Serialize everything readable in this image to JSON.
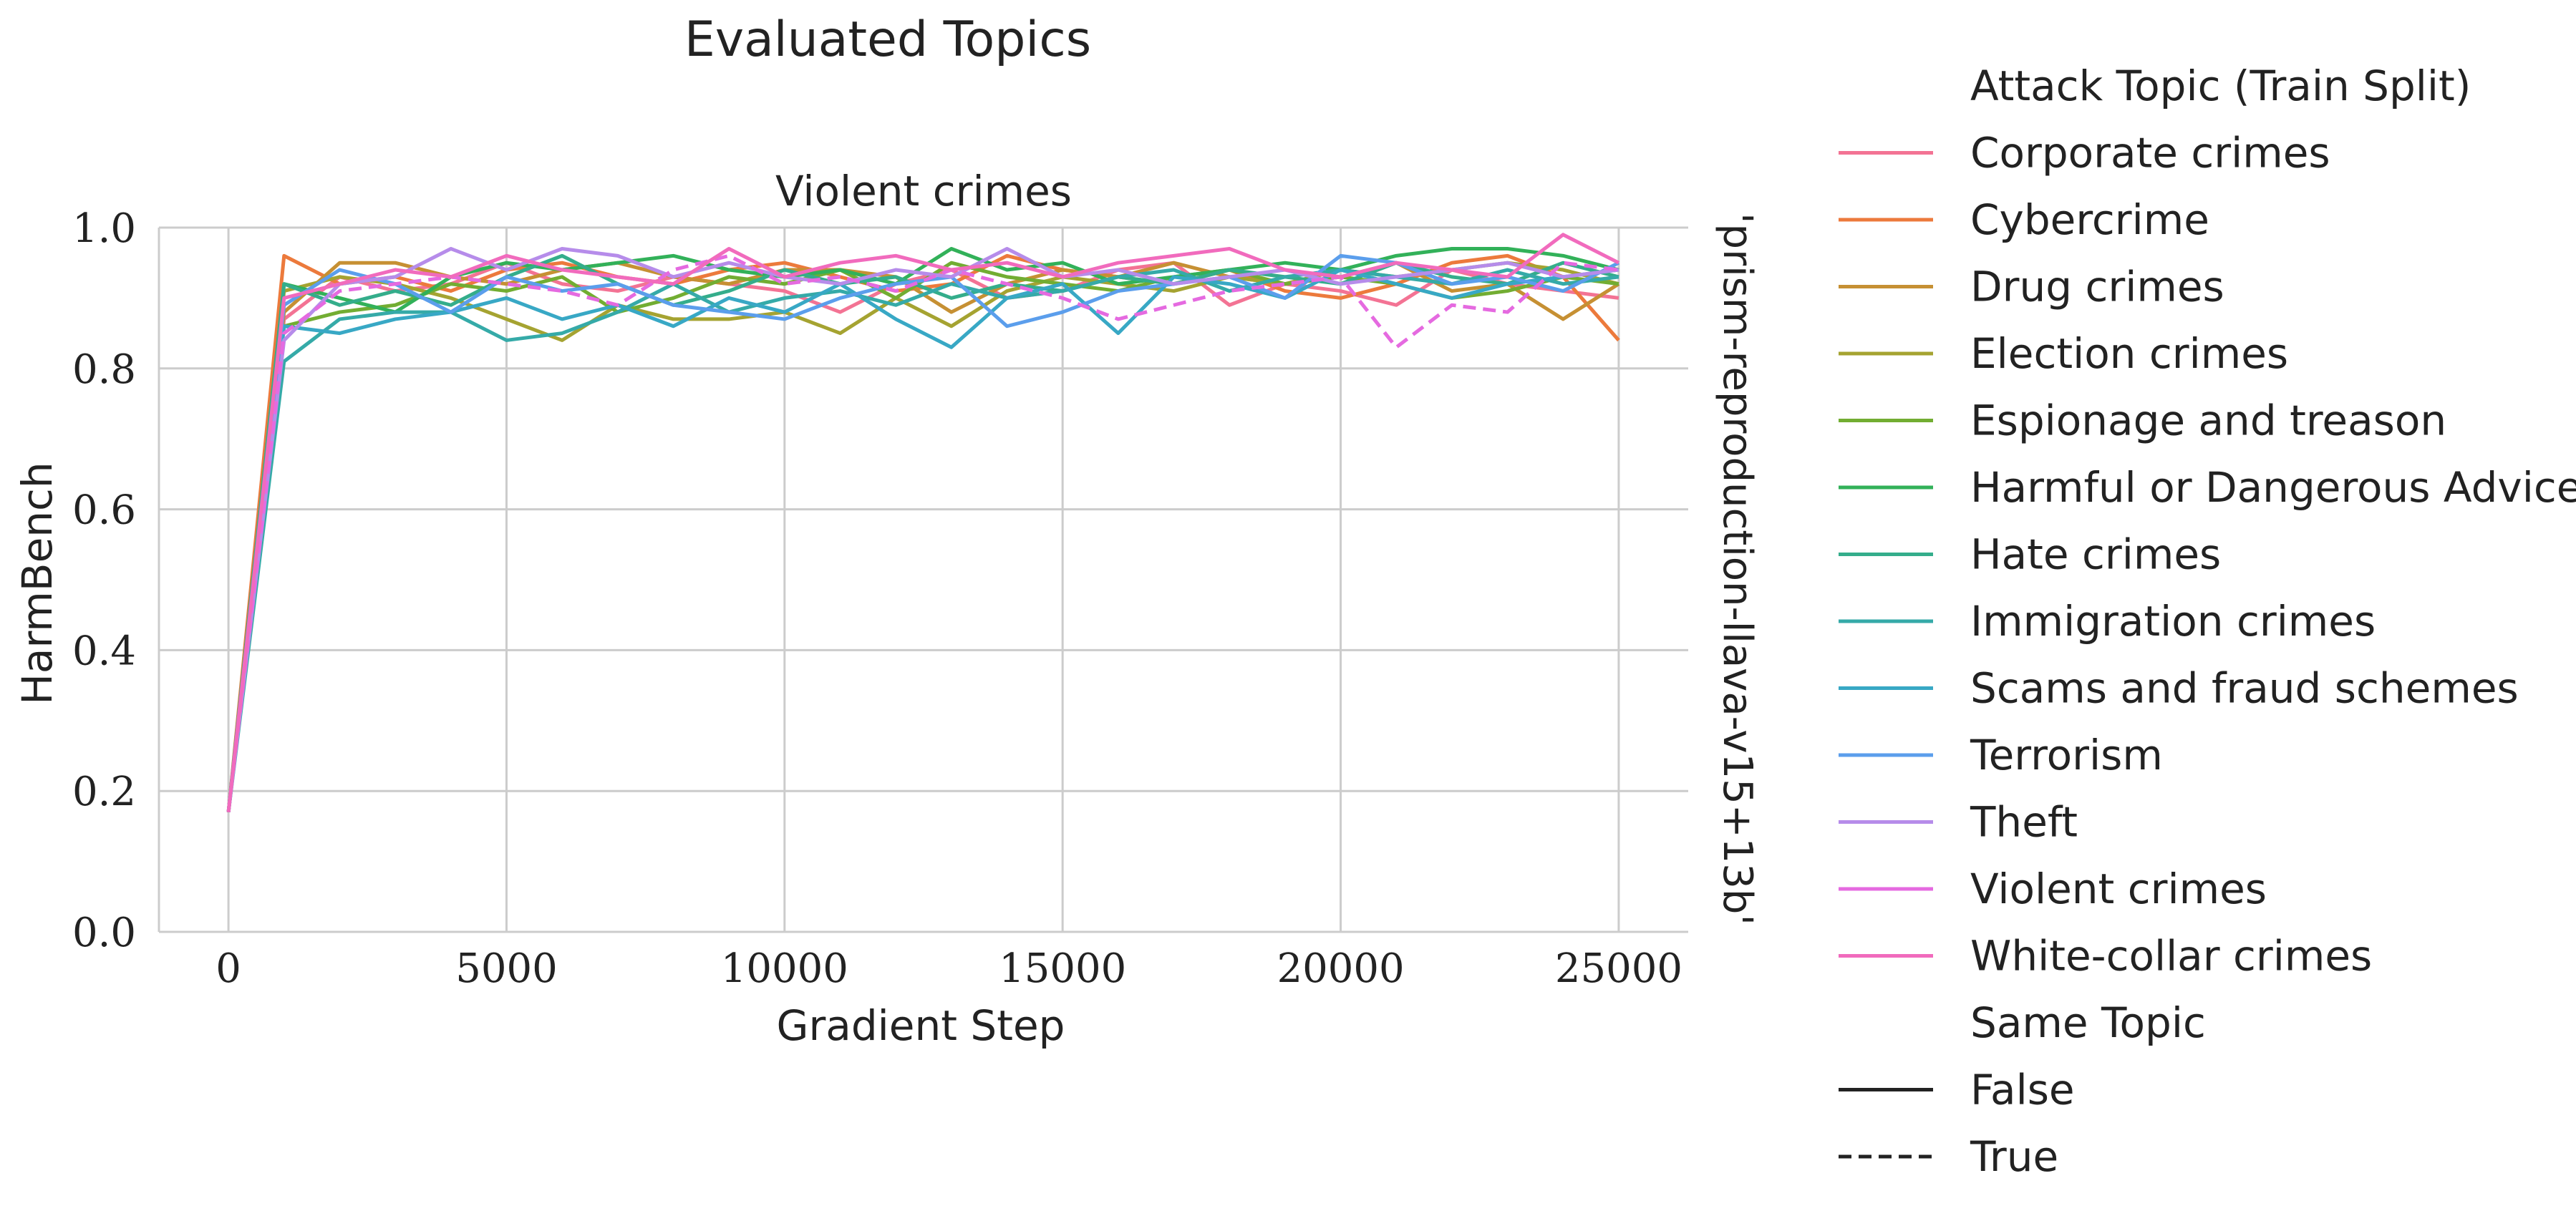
{
  "figure_title": "Evaluated Topics",
  "chart_data": {
    "type": "line",
    "title": "Violent crimes",
    "xlabel": "Gradient Step",
    "ylabel": "HarmBench",
    "row_label": "'prism-reproduction-llava-v15+13b'",
    "xlim": [
      -1250,
      26250
    ],
    "ylim": [
      0.0,
      1.0
    ],
    "xticks": [
      0,
      5000,
      10000,
      15000,
      20000,
      25000
    ],
    "yticks": [
      0.0,
      0.2,
      0.4,
      0.6,
      0.8,
      1.0
    ],
    "xtick_labels": [
      "0",
      "5000",
      "10000",
      "15000",
      "20000",
      "25000"
    ],
    "ytick_labels": [
      "0.0",
      "0.2",
      "0.4",
      "0.6",
      "0.8",
      "1.0"
    ],
    "grid": true,
    "legend_placement": "right, outside",
    "x": [
      0,
      1000,
      2000,
      3000,
      4000,
      5000,
      6000,
      7000,
      8000,
      9000,
      10000,
      11000,
      12000,
      13000,
      14000,
      15000,
      16000,
      17000,
      18000,
      19000,
      20000,
      21000,
      22000,
      23000,
      24000,
      25000
    ],
    "legend": {
      "hue_title": "Attack Topic (Train Split)",
      "style_title": "Same Topic",
      "style_entries": [
        {
          "label": "False",
          "dash": "solid"
        },
        {
          "label": "True",
          "dash": "dashed"
        }
      ]
    },
    "series": [
      {
        "name": "Corporate crimes",
        "color": "#f37394",
        "dash": "solid",
        "values": [
          0.17,
          0.87,
          0.93,
          0.91,
          0.92,
          0.95,
          0.92,
          0.91,
          0.93,
          0.92,
          0.91,
          0.88,
          0.92,
          0.94,
          0.9,
          0.91,
          0.94,
          0.95,
          0.89,
          0.92,
          0.91,
          0.89,
          0.94,
          0.92,
          0.91,
          0.9
        ]
      },
      {
        "name": "Cybercrime",
        "color": "#ec7a3c",
        "dash": "solid",
        "values": [
          0.17,
          0.96,
          0.92,
          0.93,
          0.91,
          0.94,
          0.95,
          0.93,
          0.92,
          0.94,
          0.95,
          0.93,
          0.91,
          0.92,
          0.96,
          0.94,
          0.93,
          0.92,
          0.94,
          0.91,
          0.9,
          0.92,
          0.95,
          0.96,
          0.93,
          0.84
        ]
      },
      {
        "name": "Drug crimes",
        "color": "#c69033",
        "dash": "solid",
        "values": [
          0.17,
          0.88,
          0.95,
          0.95,
          0.93,
          0.92,
          0.94,
          0.95,
          0.93,
          0.92,
          0.94,
          0.94,
          0.93,
          0.88,
          0.92,
          0.94,
          0.93,
          0.95,
          0.93,
          0.92,
          0.93,
          0.95,
          0.91,
          0.92,
          0.87,
          0.92
        ]
      },
      {
        "name": "Election crimes",
        "color": "#a5a331",
        "dash": "solid",
        "values": [
          0.17,
          0.91,
          0.93,
          0.92,
          0.9,
          0.87,
          0.84,
          0.89,
          0.87,
          0.87,
          0.88,
          0.85,
          0.9,
          0.86,
          0.91,
          0.93,
          0.92,
          0.91,
          0.93,
          0.92,
          0.94,
          0.93,
          0.94,
          0.95,
          0.94,
          0.92
        ]
      },
      {
        "name": "Espionage and treason",
        "color": "#72ad32",
        "dash": "solid",
        "values": [
          0.17,
          0.86,
          0.88,
          0.89,
          0.92,
          0.91,
          0.93,
          0.88,
          0.9,
          0.93,
          0.92,
          0.94,
          0.9,
          0.95,
          0.93,
          0.92,
          0.91,
          0.93,
          0.94,
          0.92,
          0.93,
          0.92,
          0.9,
          0.91,
          0.93,
          0.92
        ]
      },
      {
        "name": "Harmful or Dangerous Advice",
        "color": "#32b159",
        "dash": "solid",
        "values": [
          0.17,
          0.92,
          0.9,
          0.88,
          0.93,
          0.95,
          0.94,
          0.95,
          0.96,
          0.94,
          0.93,
          0.94,
          0.92,
          0.97,
          0.94,
          0.95,
          0.92,
          0.93,
          0.94,
          0.95,
          0.94,
          0.96,
          0.97,
          0.97,
          0.96,
          0.94
        ]
      },
      {
        "name": "Hate crimes",
        "color": "#34ad8b",
        "dash": "solid",
        "values": [
          0.17,
          0.92,
          0.89,
          0.91,
          0.89,
          0.93,
          0.96,
          0.92,
          0.89,
          0.91,
          0.94,
          0.92,
          0.93,
          0.9,
          0.92,
          0.91,
          0.93,
          0.92,
          0.94,
          0.93,
          0.92,
          0.95,
          0.93,
          0.92,
          0.95,
          0.93
        ]
      },
      {
        "name": "Immigration crimes",
        "color": "#35aaa8",
        "dash": "solid",
        "values": [
          0.17,
          0.81,
          0.87,
          0.88,
          0.88,
          0.84,
          0.85,
          0.88,
          0.92,
          0.88,
          0.9,
          0.91,
          0.89,
          0.92,
          0.9,
          0.91,
          0.93,
          0.94,
          0.91,
          0.93,
          0.94,
          0.93,
          0.92,
          0.94,
          0.92,
          0.93
        ]
      },
      {
        "name": "Scams and fraud schemes",
        "color": "#38a8c5",
        "dash": "solid",
        "values": [
          0.17,
          0.86,
          0.85,
          0.87,
          0.88,
          0.9,
          0.87,
          0.89,
          0.86,
          0.9,
          0.88,
          0.92,
          0.87,
          0.83,
          0.9,
          0.92,
          0.85,
          0.93,
          0.92,
          0.9,
          0.94,
          0.92,
          0.9,
          0.92,
          0.93,
          0.94
        ]
      },
      {
        "name": "Terrorism",
        "color": "#5b9eec",
        "dash": "solid",
        "values": [
          0.17,
          0.89,
          0.94,
          0.92,
          0.88,
          0.93,
          0.91,
          0.92,
          0.89,
          0.88,
          0.87,
          0.9,
          0.92,
          0.93,
          0.86,
          0.88,
          0.91,
          0.92,
          0.93,
          0.9,
          0.96,
          0.95,
          0.92,
          0.93,
          0.91,
          0.95
        ]
      },
      {
        "name": "Theft",
        "color": "#b68cea",
        "dash": "solid",
        "values": [
          0.17,
          0.84,
          0.92,
          0.93,
          0.97,
          0.94,
          0.97,
          0.96,
          0.93,
          0.95,
          0.93,
          0.92,
          0.94,
          0.93,
          0.97,
          0.93,
          0.94,
          0.92,
          0.93,
          0.94,
          0.92,
          0.93,
          0.94,
          0.95,
          0.93,
          0.94
        ]
      },
      {
        "name": "Violent crimes",
        "color": "#e56ae0",
        "dash": "dashed",
        "values": [
          0.17,
          0.85,
          0.91,
          0.92,
          0.93,
          0.92,
          0.91,
          0.89,
          0.94,
          0.96,
          0.92,
          0.93,
          0.91,
          0.94,
          0.92,
          0.9,
          0.87,
          0.89,
          0.91,
          0.92,
          0.93,
          0.83,
          0.89,
          0.88,
          0.95,
          0.94
        ]
      },
      {
        "name": "White-collar crimes",
        "color": "#f16bbd",
        "dash": "solid",
        "values": [
          0.17,
          0.9,
          0.92,
          0.94,
          0.93,
          0.96,
          0.94,
          0.93,
          0.92,
          0.97,
          0.93,
          0.95,
          0.96,
          0.94,
          0.95,
          0.93,
          0.95,
          0.96,
          0.97,
          0.94,
          0.93,
          0.95,
          0.94,
          0.93,
          0.99,
          0.95
        ]
      }
    ]
  }
}
